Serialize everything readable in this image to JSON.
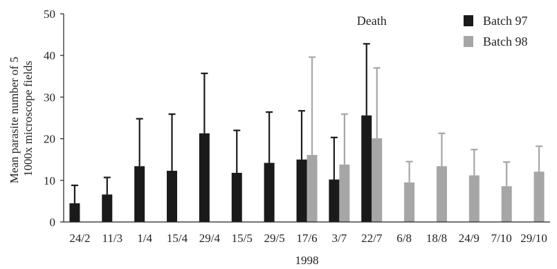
{
  "chart_data": {
    "type": "bar",
    "title": "",
    "xlabel": "1998",
    "ylabel": "Mean parasite number of 5 1000x microscope fields",
    "ylabel_lines": [
      "Mean parasite number of 5",
      "1000x microscope fields"
    ],
    "ylim": [
      0,
      50
    ],
    "yticks": [
      0,
      10,
      20,
      30,
      40,
      50
    ],
    "grid": false,
    "legend_position": "top-right",
    "annotation": "Death",
    "annotation_category": "22/7",
    "categories": [
      "24/2",
      "11/3",
      "1/4",
      "15/4",
      "29/4",
      "15/5",
      "29/5",
      "17/6",
      "3/7",
      "22/7",
      "6/8",
      "18/8",
      "24/9",
      "7/10",
      "29/10"
    ],
    "series": [
      {
        "name": "Batch 97",
        "color": "#1a1a1a",
        "values": [
          4.5,
          6.6,
          13.4,
          12.3,
          21.3,
          11.8,
          14.2,
          15.0,
          10.2,
          25.6,
          0,
          0,
          0,
          0,
          0
        ],
        "error_upper": [
          8.8,
          10.7,
          24.8,
          25.9,
          35.7,
          22.0,
          26.4,
          26.7,
          20.3,
          42.8,
          0,
          0,
          0,
          0,
          0
        ]
      },
      {
        "name": "Batch 98",
        "color": "#a6a6a6",
        "values": [
          0,
          0,
          0,
          0,
          0,
          0,
          0,
          16.1,
          13.8,
          20.1,
          9.5,
          13.4,
          11.2,
          8.6,
          12.1
        ],
        "error_upper": [
          0,
          0,
          0,
          0,
          0,
          0,
          0,
          39.6,
          25.9,
          37.0,
          14.5,
          21.3,
          17.4,
          14.4,
          18.2
        ]
      }
    ]
  }
}
